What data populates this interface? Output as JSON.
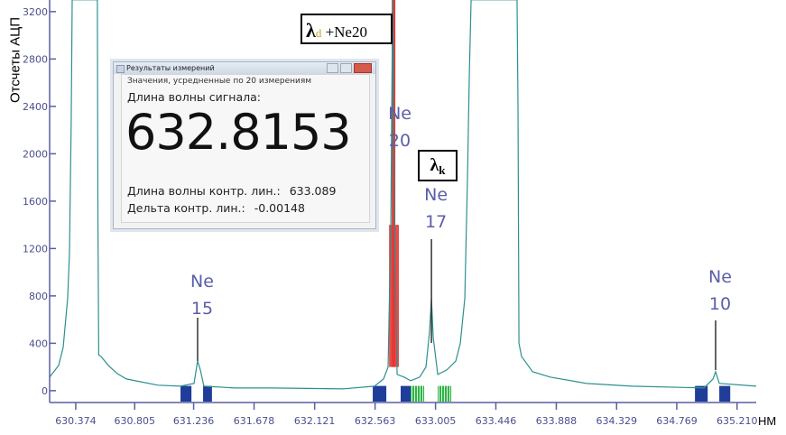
{
  "chart_data": {
    "type": "line",
    "title": "",
    "xlabel": "",
    "x_unit": "НМ",
    "ylabel": "Отсчеты АЦП",
    "xlim": [
      630.183,
      635.35
    ],
    "ylim": [
      -100,
      3260
    ],
    "x_ticks": [
      "630.374",
      "630.805",
      "631.236",
      "631.678",
      "632.121",
      "632.563",
      "633.005",
      "633.446",
      "633.888",
      "634.329",
      "634.769",
      "635.210"
    ],
    "y_ticks": [
      0,
      400,
      800,
      1200,
      1600,
      2000,
      2400,
      2800,
      3200
    ],
    "grid": false,
    "series": [
      {
        "color": "#2e8f8f",
        "points": [
          [
            630.183,
            114
          ],
          [
            630.249,
            213
          ],
          [
            630.282,
            365
          ],
          [
            630.315,
            783
          ],
          [
            630.328,
            1163
          ],
          [
            630.341,
            2303
          ],
          [
            630.348,
            3300
          ],
          [
            630.532,
            3300
          ],
          [
            630.536,
            1480
          ],
          [
            630.542,
            300
          ],
          [
            630.559,
            289
          ],
          [
            630.612,
            213
          ],
          [
            630.678,
            144
          ],
          [
            630.744,
            99
          ],
          [
            630.843,
            76
          ],
          [
            630.975,
            46
          ],
          [
            631.14,
            38
          ],
          [
            631.239,
            61
          ],
          [
            631.265,
            251
          ],
          [
            631.285,
            175
          ],
          [
            631.311,
            38
          ],
          [
            631.536,
            23
          ],
          [
            631.8,
            23
          ],
          [
            632.328,
            15
          ],
          [
            632.559,
            38
          ],
          [
            632.625,
            99
          ],
          [
            632.658,
            200
          ],
          [
            632.678,
            1400
          ],
          [
            632.691,
            3300
          ],
          [
            632.704,
            1500
          ],
          [
            632.724,
            137
          ],
          [
            632.776,
            114
          ],
          [
            632.823,
            84
          ],
          [
            632.889,
            114
          ],
          [
            632.935,
            200
          ],
          [
            632.961,
            500
          ],
          [
            632.975,
            780
          ],
          [
            632.988,
            450
          ],
          [
            633.021,
            137
          ],
          [
            633.087,
            175
          ],
          [
            633.153,
            250
          ],
          [
            633.186,
            400
          ],
          [
            633.219,
            780
          ],
          [
            633.238,
            1770
          ],
          [
            633.252,
            2660
          ],
          [
            633.265,
            3300
          ],
          [
            633.601,
            3300
          ],
          [
            633.608,
            2400
          ],
          [
            633.615,
            400
          ],
          [
            633.634,
            289
          ],
          [
            633.714,
            160
          ],
          [
            633.846,
            114
          ],
          [
            634.11,
            61
          ],
          [
            634.44,
            38
          ],
          [
            634.968,
            23
          ],
          [
            635.034,
            99
          ],
          [
            635.053,
            160
          ],
          [
            635.08,
            61
          ],
          [
            635.35,
            38
          ]
        ]
      }
    ],
    "regions": [
      {
        "from": 631.14,
        "to": 631.22,
        "color": "#1f3d99",
        "style": "solid"
      },
      {
        "from": 631.305,
        "to": 631.37,
        "color": "#1f3d99",
        "style": "solid"
      },
      {
        "from": 632.546,
        "to": 632.645,
        "color": "#1f3d99",
        "style": "solid"
      },
      {
        "from": 632.75,
        "to": 632.823,
        "color": "#1f3d99",
        "style": "solid"
      },
      {
        "from": 632.823,
        "to": 632.922,
        "color": "#2fb34a",
        "style": "hatched"
      },
      {
        "from": 633.021,
        "to": 633.12,
        "color": "#2fb34a",
        "style": "hatched"
      },
      {
        "from": 634.902,
        "to": 634.995,
        "color": "#1f3d99",
        "style": "solid"
      },
      {
        "from": 635.08,
        "to": 635.16,
        "color": "#1f3d99",
        "style": "solid"
      }
    ],
    "signal_band": {
      "from": 632.665,
      "to": 632.737,
      "color": "#e53935"
    },
    "annotations": [
      {
        "line1": "Ne",
        "line2": "15",
        "x": 631.265
      },
      {
        "line1": "Ne",
        "line2": "20",
        "x": 632.704
      },
      {
        "line1": "Ne",
        "line2": "17",
        "x": 632.975
      },
      {
        "line1": "Ne",
        "line2": "10",
        "x": 635.053
      }
    ],
    "boxes": {
      "lambda_d": {
        "symbol": "λ",
        "sub": "d",
        "text": "+Ne20"
      },
      "lambda_k": {
        "symbol": "λ",
        "sub": "k"
      }
    }
  },
  "dialog": {
    "title": "Результаты измерений",
    "subtitle": "Значения, усредненные по 20 измерениям",
    "signal_label": "Длина волны сигнала:",
    "signal_value": "632.8153",
    "ref_label": "Длина волны контр. лин.:",
    "ref_value": "633.089",
    "delta_label": "Дельта контр. лин.:",
    "delta_value": "-0.00148"
  }
}
